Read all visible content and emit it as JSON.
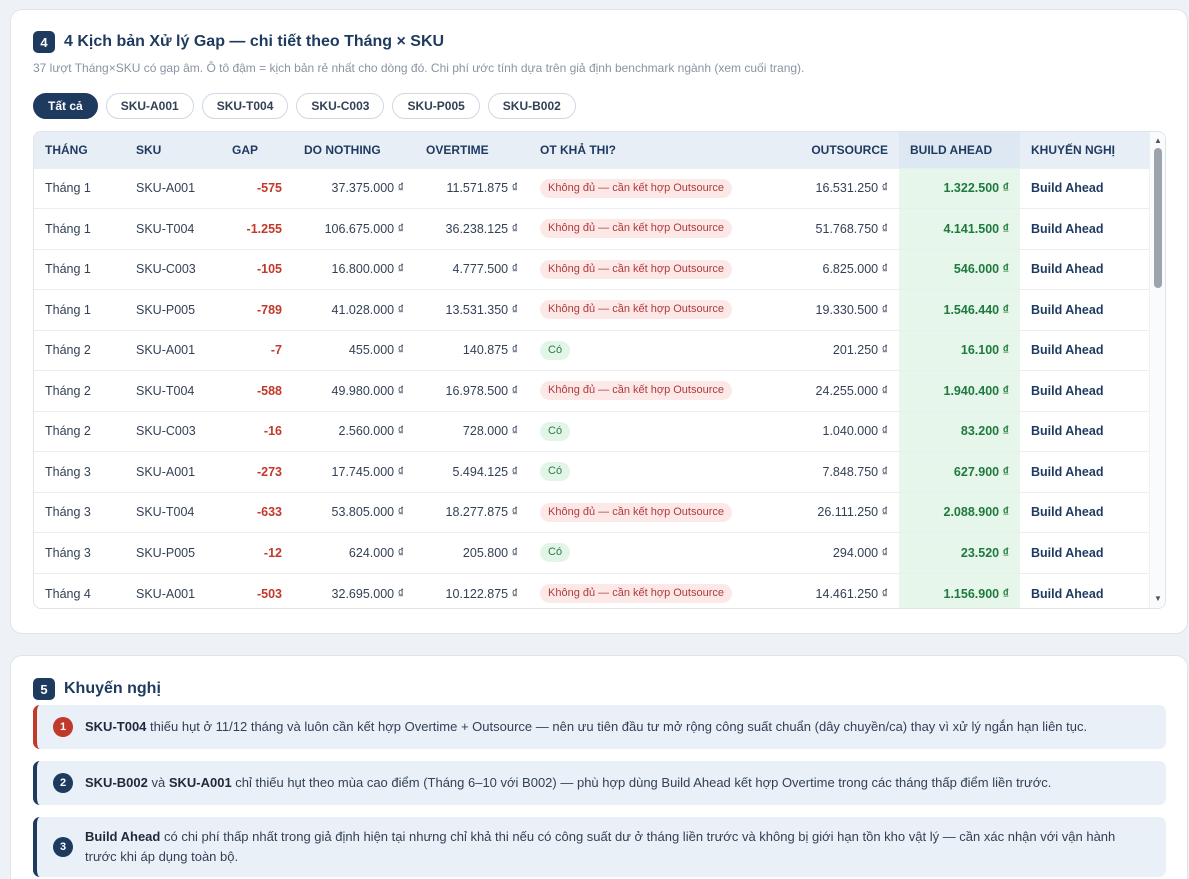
{
  "section4": {
    "number": "4",
    "title": "4 Kịch bản Xử lý Gap — chi tiết theo Tháng × SKU",
    "subtitle": "37 lượt Tháng×SKU có gap âm. Ô tô đậm = kịch bản rẻ nhất cho dòng đó. Chi phí ước tính dựa trên giả định benchmark ngành (xem cuối trang).",
    "filters": [
      "Tất cả",
      "SKU-A001",
      "SKU-T004",
      "SKU-C003",
      "SKU-P005",
      "SKU-B002"
    ],
    "active_filter": "Tất cả",
    "columns": [
      "THÁNG",
      "SKU",
      "GAP",
      "DO NOTHING",
      "OVERTIME",
      "OT KHẢ THI?",
      "OUTSOURCE",
      "BUILD AHEAD",
      "KHUYẾN NGHỊ"
    ],
    "rows": [
      {
        "month": "Tháng 1",
        "sku": "SKU-A001",
        "gap": "-575",
        "do_nothing": "37.375.000 ₫",
        "overtime": "11.571.875 ₫",
        "ot_feasible": "Không đủ — cần kết hợp Outsource",
        "ot_ok": false,
        "outsource": "16.531.250 ₫",
        "build_ahead": "1.322.500 ₫",
        "recommendation": "Build Ahead"
      },
      {
        "month": "Tháng 1",
        "sku": "SKU-T004",
        "gap": "-1.255",
        "do_nothing": "106.675.000 ₫",
        "overtime": "36.238.125 ₫",
        "ot_feasible": "Không đủ — cần kết hợp Outsource",
        "ot_ok": false,
        "outsource": "51.768.750 ₫",
        "build_ahead": "4.141.500 ₫",
        "recommendation": "Build Ahead"
      },
      {
        "month": "Tháng 1",
        "sku": "SKU-C003",
        "gap": "-105",
        "do_nothing": "16.800.000 ₫",
        "overtime": "4.777.500 ₫",
        "ot_feasible": "Không đủ — cần kết hợp Outsource",
        "ot_ok": false,
        "outsource": "6.825.000 ₫",
        "build_ahead": "546.000 ₫",
        "recommendation": "Build Ahead"
      },
      {
        "month": "Tháng 1",
        "sku": "SKU-P005",
        "gap": "-789",
        "do_nothing": "41.028.000 ₫",
        "overtime": "13.531.350 ₫",
        "ot_feasible": "Không đủ — cần kết hợp Outsource",
        "ot_ok": false,
        "outsource": "19.330.500 ₫",
        "build_ahead": "1.546.440 ₫",
        "recommendation": "Build Ahead"
      },
      {
        "month": "Tháng 2",
        "sku": "SKU-A001",
        "gap": "-7",
        "do_nothing": "455.000 ₫",
        "overtime": "140.875 ₫",
        "ot_feasible": "Có",
        "ot_ok": true,
        "outsource": "201.250 ₫",
        "build_ahead": "16.100 ₫",
        "recommendation": "Build Ahead"
      },
      {
        "month": "Tháng 2",
        "sku": "SKU-T004",
        "gap": "-588",
        "do_nothing": "49.980.000 ₫",
        "overtime": "16.978.500 ₫",
        "ot_feasible": "Không đủ — cần kết hợp Outsource",
        "ot_ok": false,
        "outsource": "24.255.000 ₫",
        "build_ahead": "1.940.400 ₫",
        "recommendation": "Build Ahead"
      },
      {
        "month": "Tháng 2",
        "sku": "SKU-C003",
        "gap": "-16",
        "do_nothing": "2.560.000 ₫",
        "overtime": "728.000 ₫",
        "ot_feasible": "Có",
        "ot_ok": true,
        "outsource": "1.040.000 ₫",
        "build_ahead": "83.200 ₫",
        "recommendation": "Build Ahead"
      },
      {
        "month": "Tháng 3",
        "sku": "SKU-A001",
        "gap": "-273",
        "do_nothing": "17.745.000 ₫",
        "overtime": "5.494.125 ₫",
        "ot_feasible": "Có",
        "ot_ok": true,
        "outsource": "7.848.750 ₫",
        "build_ahead": "627.900 ₫",
        "recommendation": "Build Ahead"
      },
      {
        "month": "Tháng 3",
        "sku": "SKU-T004",
        "gap": "-633",
        "do_nothing": "53.805.000 ₫",
        "overtime": "18.277.875 ₫",
        "ot_feasible": "Không đủ — cần kết hợp Outsource",
        "ot_ok": false,
        "outsource": "26.111.250 ₫",
        "build_ahead": "2.088.900 ₫",
        "recommendation": "Build Ahead"
      },
      {
        "month": "Tháng 3",
        "sku": "SKU-P005",
        "gap": "-12",
        "do_nothing": "624.000 ₫",
        "overtime": "205.800 ₫",
        "ot_feasible": "Có",
        "ot_ok": true,
        "outsource": "294.000 ₫",
        "build_ahead": "23.520 ₫",
        "recommendation": "Build Ahead"
      },
      {
        "month": "Tháng 4",
        "sku": "SKU-A001",
        "gap": "-503",
        "do_nothing": "32.695.000 ₫",
        "overtime": "10.122.875 ₫",
        "ot_feasible": "Không đủ — cần kết hợp Outsource",
        "ot_ok": false,
        "outsource": "14.461.250 ₫",
        "build_ahead": "1.156.900 ₫",
        "recommendation": "Build Ahead"
      }
    ]
  },
  "section5": {
    "number": "5",
    "title": "Khuyến nghị",
    "items": [
      {
        "num": "1",
        "b1": "SKU-T004",
        "t1": " thiếu hụt ở 11/12 tháng và luôn cần kết hợp Overtime + Outsource — nên ưu tiên đầu tư mở rộng công suất chuẩn (dây chuyền/ca) thay vì xử lý ngắn hạn liên tục."
      },
      {
        "num": "2",
        "b1": "SKU-B002",
        "t1": " và ",
        "b2": "SKU-A001",
        "t2": " chỉ thiếu hụt theo mùa cao điểm (Tháng 6–10 với B002) — phù hợp dùng Build Ahead kết hợp Overtime trong các tháng thấp điểm liền trước."
      },
      {
        "num": "3",
        "b1": "Build Ahead",
        "t1": " có chi phí thấp nhất trong giả định hiện tại nhưng chỉ khả thi nếu có công suất dư ở tháng liền trước và không bị giới hạn tồn kho vật lý — cần xác nhận với vận hành trước khi áp dụng toàn bộ."
      }
    ]
  },
  "colors": {
    "navy": "#1e3a5f",
    "red": "#c0392b",
    "green": "#1f7a3d",
    "green_bg": "#e6f6ea"
  },
  "icons": {
    "scroll_up": "scroll-up-arrow-icon",
    "scroll_down": "scroll-down-arrow-icon"
  }
}
